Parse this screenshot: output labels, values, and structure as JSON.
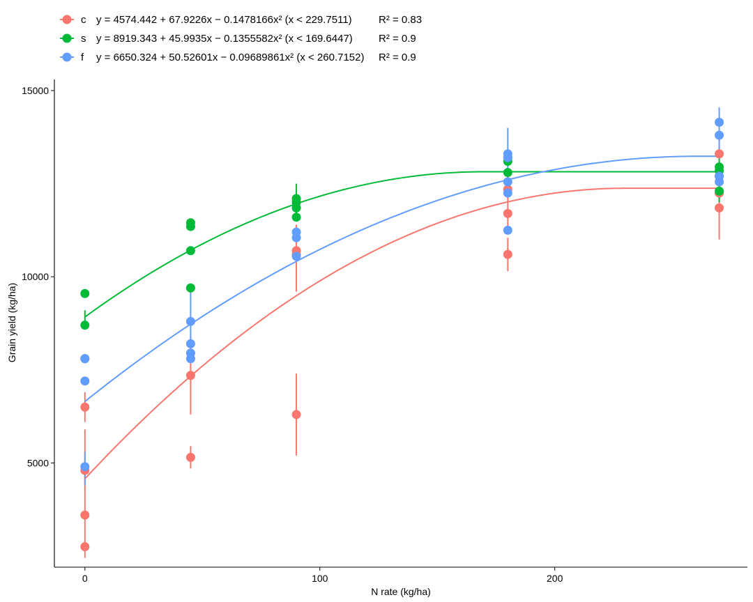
{
  "chart_data": {
    "type": "scatter",
    "xlabel": "N rate (kg/ha)",
    "ylabel": "Grain yield (kg/ha)",
    "xlim": [
      -13,
      282
    ],
    "ylim": [
      2200,
      15300
    ],
    "x_ticks": [
      0,
      100,
      200
    ],
    "y_ticks": [
      5000,
      10000,
      15000
    ],
    "grid": false,
    "legend_position": "top",
    "series": [
      {
        "name": "c",
        "color": "#F8766D",
        "equation": "y = 4574.442 + 67.9226x − 0.1478166x² (x < 229.7511)",
        "r2": "R² = 0.83",
        "fit": {
          "a": 4574.442,
          "b": 67.9226,
          "c": -0.1478166,
          "break": 229.7511
        },
        "points": [
          {
            "x": 0,
            "y": 2750
          },
          {
            "x": 0,
            "y": 3600
          },
          {
            "x": 0,
            "y": 4800
          },
          {
            "x": 0,
            "y": 6500
          },
          {
            "x": 45,
            "y": 5150
          },
          {
            "x": 45,
            "y": 7350
          },
          {
            "x": 90,
            "y": 6300
          },
          {
            "x": 90,
            "y": 10600
          },
          {
            "x": 90,
            "y": 10700
          },
          {
            "x": 180,
            "y": 10600
          },
          {
            "x": 180,
            "y": 11700
          },
          {
            "x": 180,
            "y": 12350
          },
          {
            "x": 270,
            "y": 11850
          },
          {
            "x": 270,
            "y": 12250
          },
          {
            "x": 270,
            "y": 13300
          }
        ],
        "errorbars": [
          {
            "x": 0,
            "low": 2450,
            "high": 5900
          },
          {
            "x": 0,
            "low": 6100,
            "high": 6900
          },
          {
            "x": 45,
            "low": 4850,
            "high": 5450
          },
          {
            "x": 45,
            "low": 6300,
            "high": 8400
          },
          {
            "x": 90,
            "low": 5200,
            "high": 7400
          },
          {
            "x": 90,
            "low": 9600,
            "high": 11400
          },
          {
            "x": 180,
            "low": 10150,
            "high": 11050
          },
          {
            "x": 180,
            "low": 11200,
            "high": 12800
          },
          {
            "x": 270,
            "low": 11000,
            "high": 12800
          },
          {
            "x": 270,
            "low": 12000,
            "high": 13700
          }
        ]
      },
      {
        "name": "s",
        "color": "#00BA38",
        "equation": "y = 8919.343 + 45.9935x − 0.1355582x² (x < 169.6447)",
        "r2": "R² = 0.9",
        "fit": {
          "a": 8919.343,
          "b": 45.9935,
          "c": -0.1355582,
          "break": 169.6447
        },
        "points": [
          {
            "x": 0,
            "y": 7800
          },
          {
            "x": 0,
            "y": 8700
          },
          {
            "x": 0,
            "y": 9550
          },
          {
            "x": 45,
            "y": 9700
          },
          {
            "x": 45,
            "y": 10700
          },
          {
            "x": 45,
            "y": 11350
          },
          {
            "x": 45,
            "y": 11450
          },
          {
            "x": 90,
            "y": 11600
          },
          {
            "x": 90,
            "y": 11850
          },
          {
            "x": 90,
            "y": 12000
          },
          {
            "x": 90,
            "y": 12100
          },
          {
            "x": 180,
            "y": 12800
          },
          {
            "x": 180,
            "y": 13100
          },
          {
            "x": 180,
            "y": 13200
          },
          {
            "x": 270,
            "y": 12300
          },
          {
            "x": 270,
            "y": 12700
          },
          {
            "x": 270,
            "y": 12850
          },
          {
            "x": 270,
            "y": 12950
          }
        ],
        "errorbars": [
          {
            "x": 0,
            "low": 8600,
            "high": 9100
          },
          {
            "x": 90,
            "low": 11500,
            "high": 12500
          },
          {
            "x": 270,
            "low": 12000,
            "high": 13300
          }
        ]
      },
      {
        "name": "f",
        "color": "#619CFF",
        "equation": "y = 6650.324 + 50.52601x − 0.09689861x² (x < 260.7152)",
        "r2": "R² = 0.9",
        "fit": {
          "a": 6650.324,
          "b": 50.52601,
          "c": -0.09689861,
          "break": 260.7152
        },
        "points": [
          {
            "x": 0,
            "y": 4900
          },
          {
            "x": 0,
            "y": 7200
          },
          {
            "x": 0,
            "y": 7800
          },
          {
            "x": 45,
            "y": 7800
          },
          {
            "x": 45,
            "y": 7950
          },
          {
            "x": 45,
            "y": 8200
          },
          {
            "x": 45,
            "y": 8800
          },
          {
            "x": 90,
            "y": 10550
          },
          {
            "x": 90,
            "y": 11050
          },
          {
            "x": 90,
            "y": 11200
          },
          {
            "x": 180,
            "y": 11250
          },
          {
            "x": 180,
            "y": 12250
          },
          {
            "x": 180,
            "y": 12550
          },
          {
            "x": 180,
            "y": 13200
          },
          {
            "x": 180,
            "y": 13300
          },
          {
            "x": 270,
            "y": 12550
          },
          {
            "x": 270,
            "y": 12700
          },
          {
            "x": 270,
            "y": 13800
          },
          {
            "x": 270,
            "y": 14150
          }
        ],
        "errorbars": [
          {
            "x": 0,
            "low": 4400,
            "high": 5300
          },
          {
            "x": 45,
            "low": 8100,
            "high": 9600
          },
          {
            "x": 180,
            "low": 12700,
            "high": 14000
          },
          {
            "x": 270,
            "low": 13200,
            "high": 14550
          }
        ]
      }
    ]
  }
}
